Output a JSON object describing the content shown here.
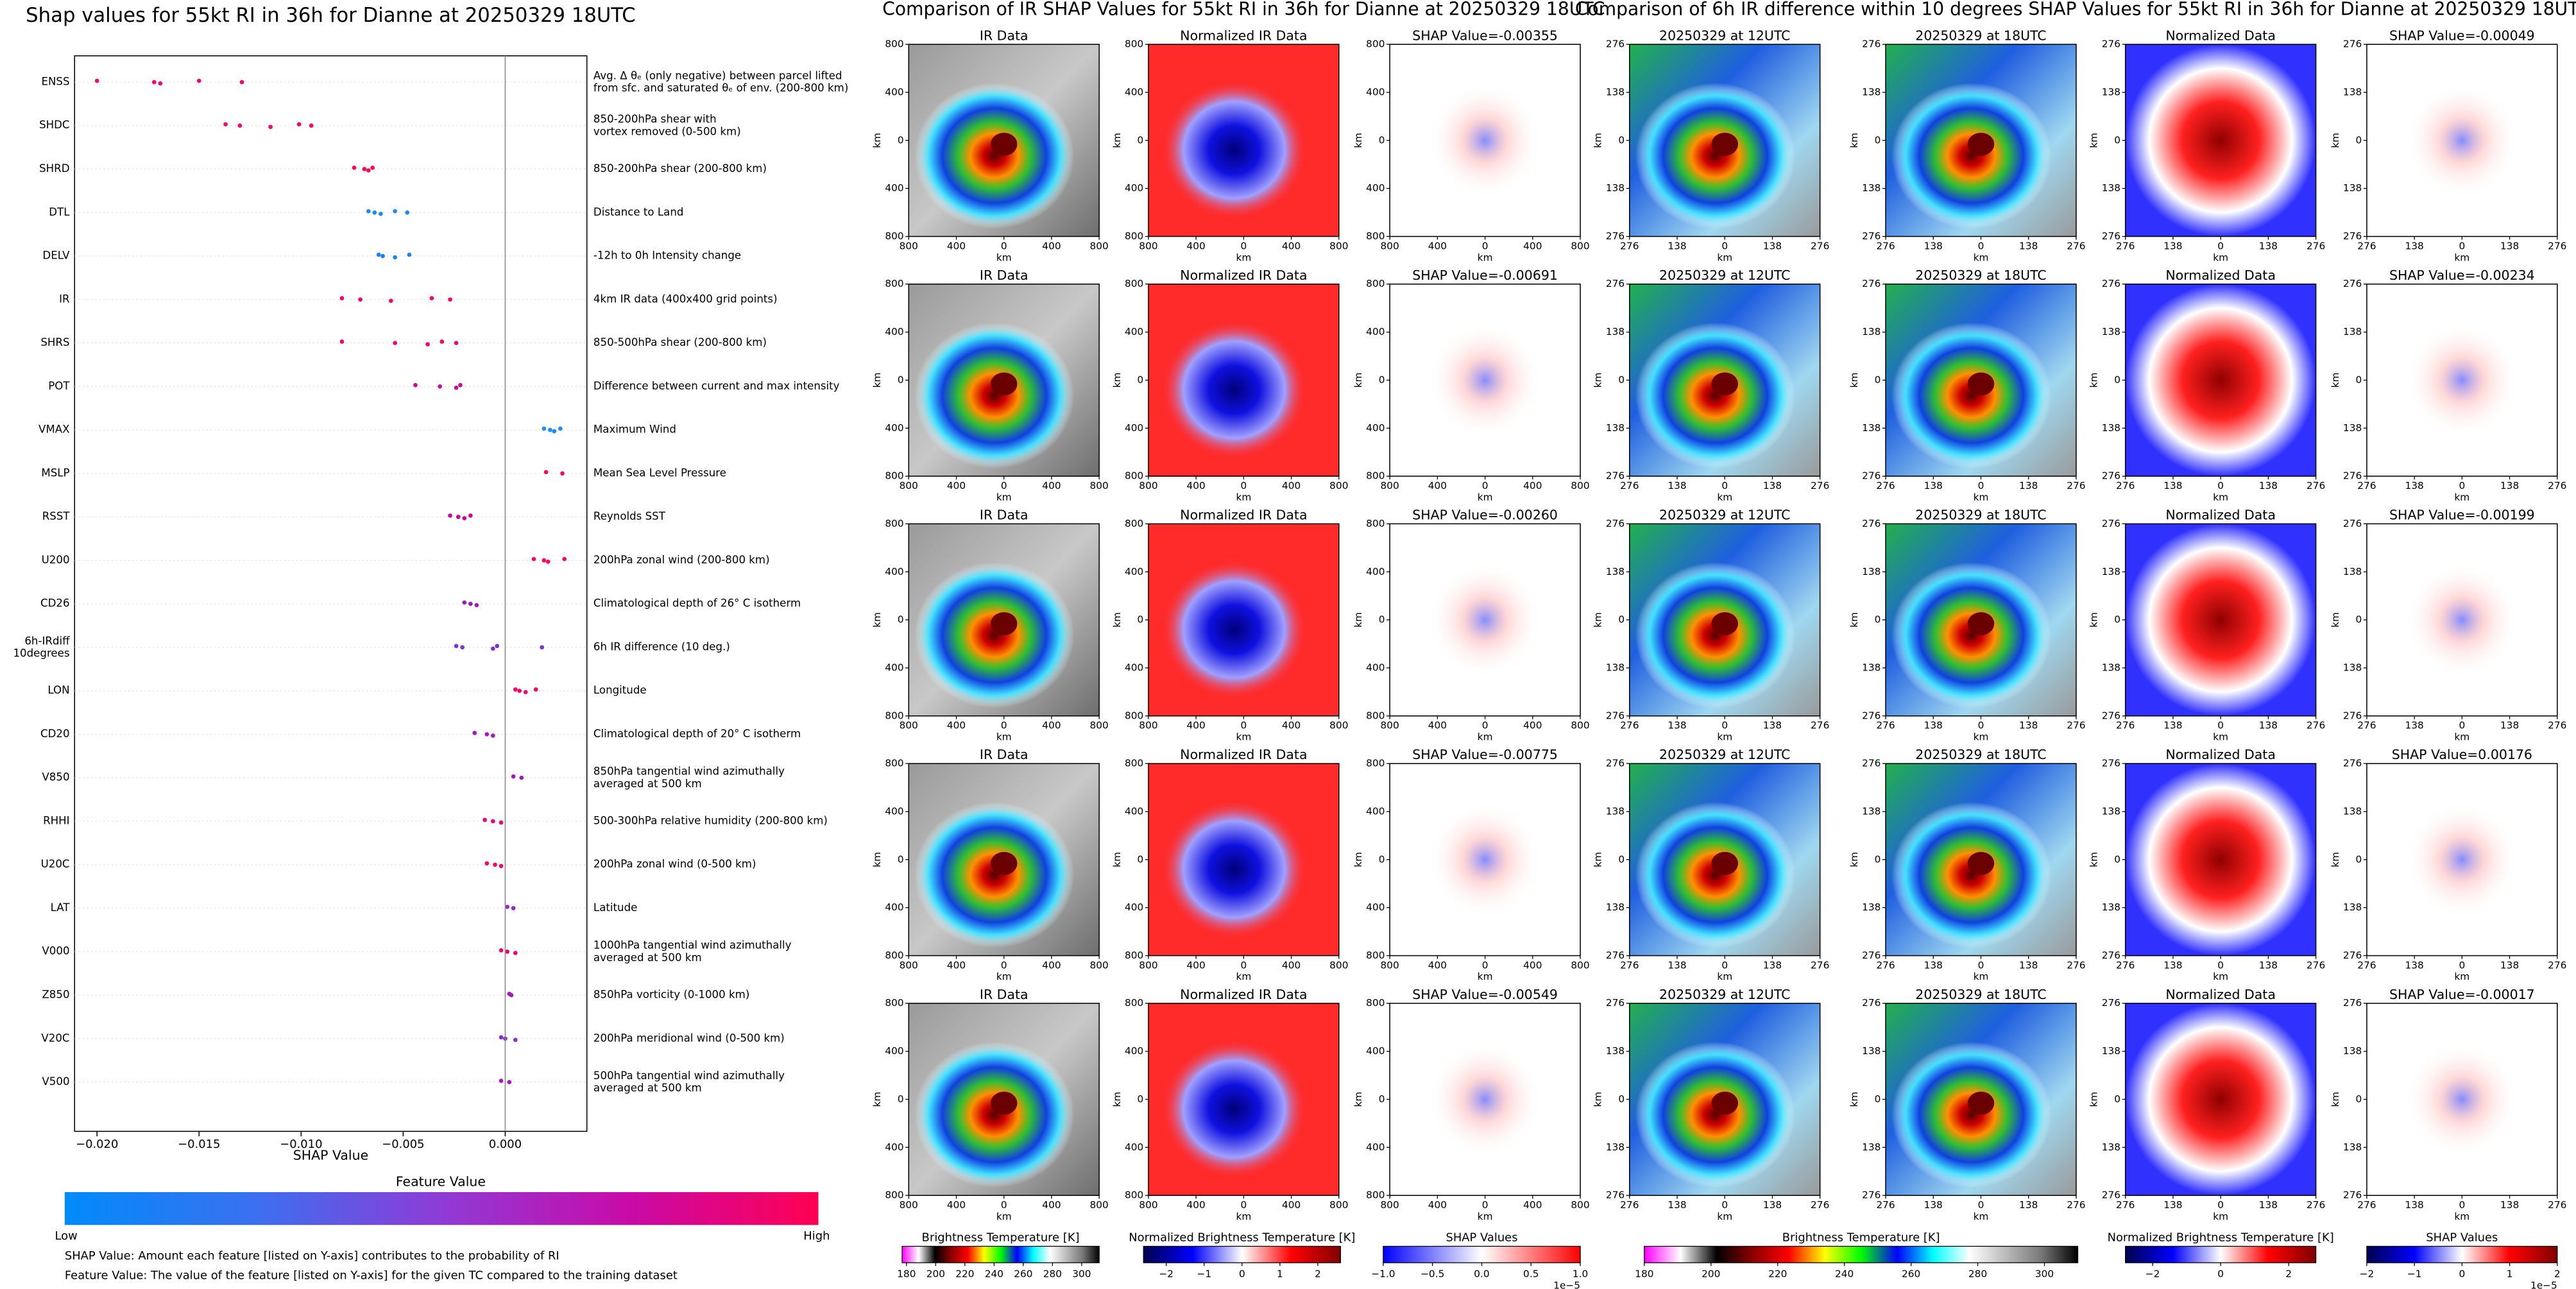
{
  "chart_data": {
    "type": "beeswarm",
    "title": "Shap values for 55kt RI in 36h for Dianne at 20250329 18UTC",
    "xlabel": "SHAP Value",
    "xlim": [
      -0.0211,
      0.004
    ],
    "xticks": [
      {
        "value": -0.02,
        "label": "−0.020"
      },
      {
        "value": -0.015,
        "label": "−0.015"
      },
      {
        "value": -0.01,
        "label": "−0.010"
      },
      {
        "value": -0.005,
        "label": "−0.005"
      },
      {
        "value": 0,
        "label": "0.000"
      }
    ],
    "zero_line": true,
    "series": [
      {
        "name": "ENSS",
        "description": "Avg. Δ θₑ (only negative) between parcel lifted\nfrom sfc. and saturated θₑ of env. (200-800 km)",
        "color": "#f5066f",
        "values": [
          -0.02,
          -0.0172,
          -0.0169,
          -0.015,
          -0.0129
        ]
      },
      {
        "name": "SHDC",
        "description": "850-200hPa shear with\nvortex removed (0-500 km)",
        "color": "#f5066f",
        "values": [
          -0.0137,
          -0.013,
          -0.0115,
          -0.0101,
          -0.0095
        ]
      },
      {
        "name": "SHRD",
        "description": "850-200hPa shear (200-800 km)",
        "color": "#ff0556",
        "values": [
          -0.0074,
          -0.0069,
          -0.0067,
          -0.0065
        ]
      },
      {
        "name": "DTL",
        "description": "Distance to Land",
        "color": "#1e88f7",
        "values": [
          -0.0067,
          -0.0064,
          -0.0061,
          -0.0054,
          -0.0048
        ]
      },
      {
        "name": "DELV",
        "description": "-12h to 0h Intensity change",
        "color": "#1e7ff7",
        "values": [
          -0.0062,
          -0.006,
          -0.0054,
          -0.0047
        ]
      },
      {
        "name": "IR",
        "description": "4km IR data (400x400 grid points)",
        "color": "#f2056c",
        "values": [
          -0.008,
          -0.0071,
          -0.0056,
          -0.0036,
          -0.0027
        ]
      },
      {
        "name": "SHRS",
        "description": "850-500hPa shear (200-800 km)",
        "color": "#f0056e",
        "values": [
          -0.008,
          -0.0054,
          -0.0038,
          -0.0031,
          -0.0024
        ]
      },
      {
        "name": "POT",
        "description": "Difference between current and max intensity",
        "color": "#c8099e",
        "values": [
          -0.0044,
          -0.0032,
          -0.0024,
          -0.0022
        ]
      },
      {
        "name": "VMAX",
        "description": "Maximum Wind",
        "color": "#1a8cff",
        "values": [
          0.0019,
          0.0022,
          0.0024,
          0.0027
        ]
      },
      {
        "name": "MSLP",
        "description": "Mean Sea Level Pressure",
        "color": "#ff0556",
        "values": [
          0.002,
          0.0028
        ]
      },
      {
        "name": "RSST",
        "description": "Reynolds SST",
        "color": "#c40aa2",
        "values": [
          -0.0027,
          -0.0023,
          -0.002,
          -0.0017
        ]
      },
      {
        "name": "U200",
        "description": "200hPa zonal wind (200-800 km)",
        "color": "#ff0558",
        "values": [
          0.0014,
          0.0019,
          0.0021,
          0.0029
        ]
      },
      {
        "name": "CD26",
        "description": "Climatological depth of 26° C isotherm",
        "color": "#9b1fc0",
        "values": [
          -0.002,
          -0.0017,
          -0.0014
        ]
      },
      {
        "name": "6h-IRdiff\n10degrees",
        "description": "6h IR difference (10 deg.)",
        "color": "#7b33d0",
        "values": [
          -0.0024,
          -0.0021,
          -0.0006,
          -0.0004,
          0.0018
        ]
      },
      {
        "name": "LON",
        "description": "Longitude",
        "color": "#f5066a",
        "values": [
          0.0005,
          0.0007,
          0.001,
          0.0015
        ]
      },
      {
        "name": "CD20",
        "description": "Climatological depth of 20° C isotherm",
        "color": "#a319ba",
        "values": [
          -0.0015,
          -0.0009,
          -0.0006
        ]
      },
      {
        "name": "V850",
        "description": "850hPa tangential wind azimuthally\naveraged at 500 km",
        "color": "#a019bd",
        "values": [
          0.0004,
          0.0008
        ]
      },
      {
        "name": "RHHI",
        "description": "500-300hPa relative humidity (200-800 km)",
        "color": "#e6067a",
        "values": [
          -0.001,
          -0.0006,
          -0.0002
        ]
      },
      {
        "name": "U20C",
        "description": "200hPa zonal wind (0-500 km)",
        "color": "#f00668",
        "values": [
          -0.0009,
          -0.0005,
          -0.0002
        ]
      },
      {
        "name": "LAT",
        "description": "Latitude",
        "color": "#9a26c8",
        "values": [
          0.0001,
          0.0004
        ]
      },
      {
        "name": "V000",
        "description": "1000hPa tangential wind azimuthally\naveraged at 500 km",
        "color": "#f0066c",
        "values": [
          -0.0002,
          0.0001,
          0.0005
        ]
      },
      {
        "name": "Z850",
        "description": "850hPa vorticity (0-1000 km)",
        "color": "#a51bb9",
        "values": [
          0.0002,
          0.0003
        ]
      },
      {
        "name": "V20C",
        "description": "200hPa meridional wind (0-500 km)",
        "color": "#8b2ccb",
        "values": [
          -0.0002,
          0,
          0.0005
        ]
      },
      {
        "name": "V500",
        "description": "500hPa tangential wind azimuthally\naveraged at 500 km",
        "color": "#aa15b6",
        "values": [
          -0.0002,
          0.0002
        ]
      }
    ],
    "colorbar": {
      "title": "Feature Value",
      "low": "Low",
      "high": "High",
      "colors": [
        "#008bfb",
        "#3a70f0",
        "#8f3bd6",
        "#c90aa8",
        "#ff0052"
      ]
    },
    "notes": [
      "SHAP Value: Amount each feature [listed on Y-axis] contributes to the probability of RI",
      "Feature Value: The value of the feature [listed on Y-axis] for the given TC compared to the training dataset"
    ]
  },
  "ir_comparison": {
    "title": "Comparison of IR SHAP Values for 55kt RI in 36h for Dianne at 20250329 18UTC",
    "columns": [
      "IR Data",
      "Normalized IR Data"
    ],
    "rows": [
      "SHAP Value=-0.00355",
      "SHAP Value=-0.00691",
      "SHAP Value=-0.00260",
      "SHAP Value=-0.00775",
      "SHAP Value=-0.00549"
    ],
    "axis_label": "km",
    "lim": [
      -800,
      800
    ],
    "ticks": [
      {
        "value": -800,
        "label": "800"
      },
      {
        "value": -400,
        "label": "400"
      },
      0,
      {
        "value": 400,
        "label": "400"
      },
      {
        "value": 800,
        "label": "800"
      }
    ],
    "colorbars": [
      {
        "label": "Brightness Temperature [K]",
        "lim": [
          177,
          312
        ],
        "ticks": [
          180,
          200,
          220,
          240,
          260,
          280,
          300
        ],
        "colors": [
          "#ff00ff",
          "#ffffff",
          "#000000",
          "#8b0000",
          "#ff0000",
          "#ffff00",
          "#00ff00",
          "#0000ff",
          "#00ffff",
          "#ffffff",
          "#bbbbbb",
          "#777777",
          "#000000"
        ]
      },
      {
        "label": "Normalized Brightness Temperature [K]",
        "lim": [
          -2.6,
          2.6
        ],
        "ticks": [
          {
            "value": -2,
            "label": "−2"
          },
          {
            "value": -1,
            "label": "−1"
          },
          0,
          1,
          2
        ],
        "colors": [
          "#00004d",
          "#0000ff",
          "#ffffff",
          "#ff0000",
          "#800000"
        ]
      },
      {
        "label": "SHAP Values",
        "lim": [
          -1,
          1
        ],
        "ticks": [
          {
            "value": -1,
            "label": "−1.0"
          },
          {
            "value": -0.5,
            "label": "−0.5"
          },
          {
            "value": 0,
            "label": "0.0"
          },
          0.5,
          {
            "value": 1,
            "label": "1.0"
          }
        ],
        "colors": [
          "#0000ff",
          "#ffffff",
          "#ff0000"
        ],
        "offset": "1e−5"
      }
    ]
  },
  "ir_diff_comparison": {
    "title": "Comparison of 6h IR difference within 10 degrees SHAP Values for 55kt RI in 36h for Dianne at 20250329 18UTC",
    "columns": [
      "20250329 at 12UTC",
      "20250329 at 18UTC",
      "Normalized Data"
    ],
    "rows": [
      "SHAP Value=-0.00049",
      "SHAP Value=-0.00234",
      "SHAP Value=-0.00199",
      "SHAP Value=0.00176",
      "SHAP Value=-0.00017"
    ],
    "axis_label": "km",
    "lim": [
      -276,
      276
    ],
    "ticks": [
      {
        "value": -276,
        "label": "276"
      },
      {
        "value": -138,
        "label": "138"
      },
      0,
      {
        "value": 138,
        "label": "138"
      },
      {
        "value": 276,
        "label": "276"
      }
    ],
    "colorbars": [
      {
        "label": "Brightness Temperature [K]",
        "lim": [
          180,
          310
        ],
        "ticks": [
          180,
          200,
          220,
          240,
          260,
          280,
          300
        ],
        "colors": [
          "#ff00ff",
          "#ffffff",
          "#000000",
          "#8b0000",
          "#ff0000",
          "#ffff00",
          "#00ff00",
          "#0000ff",
          "#00ffff",
          "#ffffff",
          "#bbbbbb",
          "#777777",
          "#000000"
        ]
      },
      {
        "label": "Normalized Brightness Temperature [K]",
        "lim": [
          -2.8,
          2.8
        ],
        "ticks": [
          {
            "value": -2,
            "label": "−2"
          },
          0,
          2
        ],
        "colors": [
          "#00004d",
          "#0000ff",
          "#ffffff",
          "#ff0000",
          "#800000"
        ]
      },
      {
        "label": "SHAP Values",
        "lim": [
          -2,
          2
        ],
        "ticks": [
          {
            "value": -2,
            "label": "−2"
          },
          {
            "value": -1,
            "label": "−1"
          },
          0,
          1,
          2
        ],
        "colors": [
          "#00004d",
          "#0000ff",
          "#ffffff",
          "#ff0000",
          "#800000"
        ],
        "offset": "1e−5"
      }
    ]
  }
}
